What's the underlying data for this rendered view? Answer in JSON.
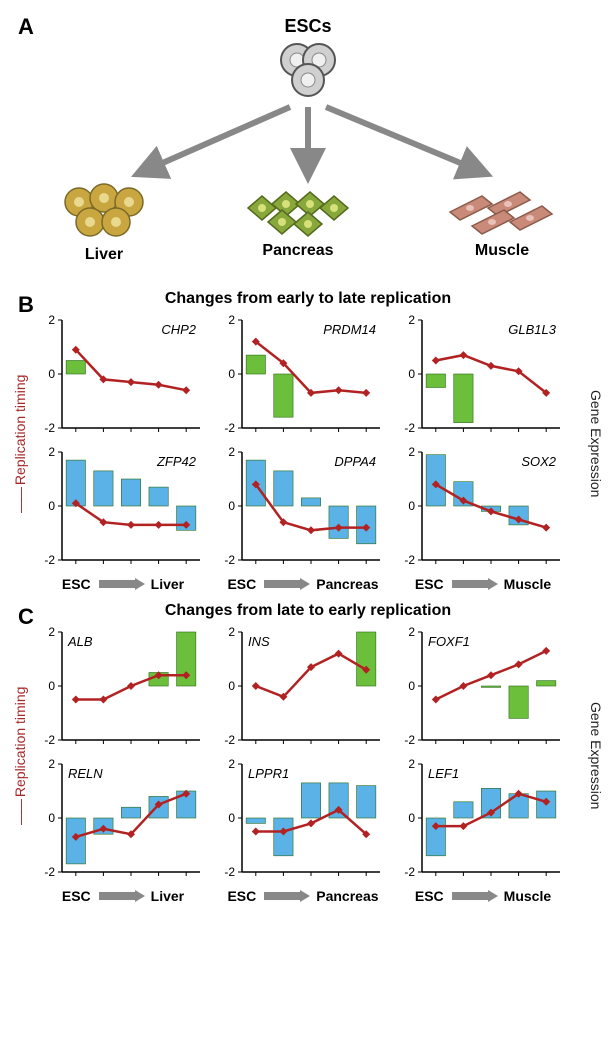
{
  "panelA": {
    "title": "ESCs",
    "lineages": [
      {
        "label": "Liver",
        "fill": "#c9a63f",
        "inner": "#e8d98e"
      },
      {
        "label": "Pancreas",
        "fill": "#88a83b",
        "inner": "#d7e07a"
      },
      {
        "label": "Muscle",
        "fill": "#c98a7a",
        "inner": "#e8c2b8"
      }
    ],
    "arrow_color": "#888888"
  },
  "panelB": {
    "title": "Changes from early to late replication",
    "ylab_left": "Replication timing",
    "ylab_right": "Gene Expression",
    "ylim": [
      -2,
      2
    ],
    "bar_colors": {
      "green": "#6cbf3a",
      "blue": "#5bb2e6"
    },
    "line_color": "#b22222",
    "xaxes": [
      {
        "left": "ESC",
        "right": "Liver"
      },
      {
        "left": "ESC",
        "right": "Pancreas"
      },
      {
        "left": "ESC",
        "right": "Muscle"
      }
    ],
    "charts": [
      {
        "gene": "CHP2",
        "label_side": "right",
        "color": "green",
        "bars": [
          0.5,
          0.0,
          0.0,
          0.0,
          0.0
        ],
        "line": [
          0.9,
          -0.2,
          -0.3,
          -0.4,
          -0.6
        ]
      },
      {
        "gene": "PRDM14",
        "label_side": "right",
        "color": "green",
        "bars": [
          0.7,
          -1.6,
          0.0,
          0.0,
          0.0
        ],
        "line": [
          1.2,
          0.4,
          -0.7,
          -0.6,
          -0.7
        ]
      },
      {
        "gene": "GLB1L3",
        "label_side": "right",
        "color": "green",
        "bars": [
          -0.5,
          -1.8,
          0.0,
          0.0,
          0.0
        ],
        "line": [
          0.5,
          0.7,
          0.3,
          0.1,
          -0.7
        ]
      },
      {
        "gene": "ZFP42",
        "label_side": "right",
        "color": "blue",
        "bars": [
          1.7,
          1.3,
          1.0,
          0.7,
          -0.9
        ],
        "line": [
          0.1,
          -0.6,
          -0.7,
          -0.7,
          -0.7
        ]
      },
      {
        "gene": "DPPA4",
        "label_side": "right",
        "color": "blue",
        "bars": [
          1.7,
          1.3,
          0.3,
          -1.2,
          -1.4
        ],
        "line": [
          0.8,
          -0.6,
          -0.9,
          -0.8,
          -0.8
        ]
      },
      {
        "gene": "SOX2",
        "label_side": "right",
        "color": "blue",
        "bars": [
          1.9,
          0.9,
          -0.2,
          -0.7,
          0.0
        ],
        "line": [
          0.8,
          0.2,
          -0.2,
          -0.5,
          -0.8
        ]
      }
    ]
  },
  "panelC": {
    "title": "Changes from late to early replication",
    "ylab_left": "Replication timing",
    "ylab_right": "Gene Expression",
    "ylim": [
      -2,
      2
    ],
    "bar_colors": {
      "green": "#6cbf3a",
      "blue": "#5bb2e6"
    },
    "line_color": "#b22222",
    "xaxes": [
      {
        "left": "ESC",
        "right": "Liver"
      },
      {
        "left": "ESC",
        "right": "Pancreas"
      },
      {
        "left": "ESC",
        "right": "Muscle"
      }
    ],
    "charts": [
      {
        "gene": "ALB",
        "label_side": "left",
        "color": "green",
        "bars": [
          0.0,
          0.0,
          0.0,
          0.5,
          2.2
        ],
        "line": [
          -0.5,
          -0.5,
          0.0,
          0.4,
          0.4
        ]
      },
      {
        "gene": "INS",
        "label_side": "left",
        "color": "green",
        "bars": [
          0.0,
          0.0,
          0.0,
          0.0,
          2.2
        ],
        "line": [
          0.0,
          -0.4,
          0.7,
          1.2,
          0.6
        ]
      },
      {
        "gene": "FOXF1",
        "label_side": "left",
        "color": "green",
        "bars": [
          0.0,
          0.0,
          -0.05,
          -1.2,
          0.2
        ],
        "line": [
          -0.5,
          0.0,
          0.4,
          0.8,
          1.3
        ]
      },
      {
        "gene": "RELN",
        "label_side": "left",
        "color": "blue",
        "bars": [
          -1.7,
          -0.6,
          0.4,
          0.8,
          1.0
        ],
        "line": [
          -0.7,
          -0.4,
          -0.6,
          0.5,
          0.9
        ]
      },
      {
        "gene": "LPPR1",
        "label_side": "left",
        "color": "blue",
        "bars": [
          -0.2,
          -1.4,
          1.3,
          1.3,
          1.2
        ],
        "line": [
          -0.5,
          -0.5,
          -0.2,
          0.3,
          -0.6
        ]
      },
      {
        "gene": "LEF1",
        "label_side": "left",
        "color": "blue",
        "bars": [
          -1.4,
          0.6,
          1.1,
          0.9,
          1.0
        ],
        "line": [
          -0.3,
          -0.3,
          0.2,
          0.9,
          0.6
        ]
      }
    ]
  },
  "panel_labels": {
    "A": "A",
    "B": "B",
    "C": "C"
  }
}
